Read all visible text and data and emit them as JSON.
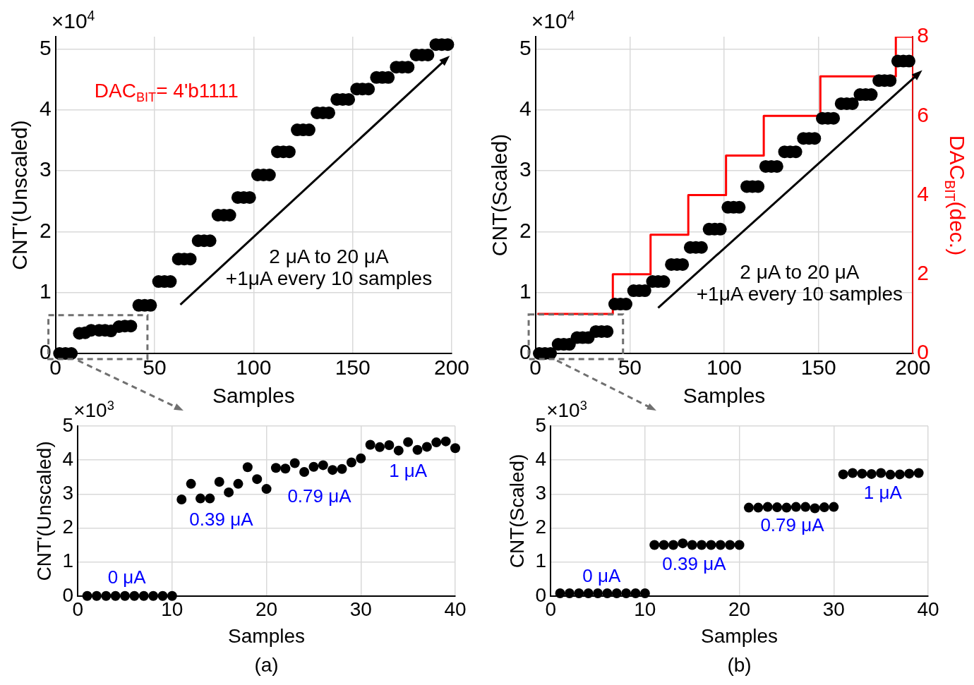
{
  "chart_data": [
    {
      "type": "scatter",
      "xlabel": "Samples",
      "ylabel": "CNT'(Unscaled)",
      "color": "#000000",
      "marker": "circle",
      "grid": true,
      "x": [
        2,
        5,
        8,
        12,
        15,
        18,
        22,
        25,
        28,
        32,
        35,
        38,
        42,
        45,
        48,
        52,
        55,
        58,
        62,
        65,
        68,
        72,
        75,
        78,
        82,
        85,
        88,
        92,
        95,
        98,
        102,
        105,
        108,
        112,
        115,
        118,
        122,
        125,
        128,
        132,
        135,
        138,
        142,
        145,
        148,
        152,
        155,
        158,
        162,
        165,
        168,
        172,
        175,
        178,
        182,
        185,
        188,
        192,
        195,
        198
      ],
      "values": [
        0,
        0,
        0,
        0.33,
        0.34,
        0.38,
        0.38,
        0.38,
        0.37,
        0.44,
        0.45,
        0.45,
        0.79,
        0.79,
        0.79,
        1.18,
        1.18,
        1.18,
        1.55,
        1.55,
        1.55,
        1.85,
        1.85,
        1.85,
        2.27,
        2.27,
        2.27,
        2.56,
        2.56,
        2.56,
        2.93,
        2.93,
        2.93,
        3.31,
        3.31,
        3.31,
        3.67,
        3.67,
        3.67,
        3.95,
        3.95,
        3.95,
        4.17,
        4.17,
        4.17,
        4.34,
        4.34,
        4.34,
        4.53,
        4.53,
        4.53,
        4.7,
        4.7,
        4.7,
        4.9,
        4.9,
        4.9,
        5.07,
        5.07,
        5.07
      ],
      "xlim": [
        0,
        200
      ],
      "xticks": [
        0,
        50,
        100,
        150,
        200
      ],
      "ylim": [
        0,
        5.2
      ],
      "yticks": [
        0,
        1,
        2,
        3,
        4,
        5
      ],
      "annotations": [
        "×10$^{4}$",
        "DAC$_{BIT}$= 4'b1111",
        "2 μA to 20 μA\n+1μA every 10 samples"
      ]
    },
    {
      "type": "scatter",
      "xlabel": "Samples",
      "ylabel": "CNT(Scaled)",
      "y2label": "DAC$_{BIT}$(dec.)",
      "grid": true,
      "series": [
        {
          "type": "scatter",
          "color": "#000000",
          "marker": "circle",
          "x": [
            2,
            5,
            8,
            12,
            15,
            18,
            22,
            25,
            28,
            32,
            35,
            38,
            42,
            45,
            48,
            52,
            55,
            58,
            62,
            65,
            68,
            72,
            75,
            78,
            82,
            85,
            88,
            92,
            95,
            98,
            102,
            105,
            108,
            112,
            115,
            118,
            122,
            125,
            128,
            132,
            135,
            138,
            142,
            145,
            148,
            152,
            155,
            158,
            162,
            165,
            168,
            172,
            175,
            178,
            182,
            185,
            188,
            192,
            195,
            198
          ],
          "values": [
            0,
            0,
            0,
            0.15,
            0.15,
            0.15,
            0.26,
            0.26,
            0.26,
            0.36,
            0.36,
            0.36,
            0.81,
            0.81,
            0.81,
            1.03,
            1.03,
            1.03,
            1.18,
            1.18,
            1.18,
            1.46,
            1.46,
            1.46,
            1.74,
            1.74,
            1.74,
            2.04,
            2.04,
            2.04,
            2.4,
            2.4,
            2.4,
            2.74,
            2.74,
            2.74,
            3.07,
            3.07,
            3.07,
            3.31,
            3.31,
            3.31,
            3.53,
            3.53,
            3.53,
            3.86,
            3.86,
            3.86,
            4.1,
            4.1,
            4.1,
            4.25,
            4.25,
            4.25,
            4.48,
            4.48,
            4.48,
            4.8,
            4.8,
            4.8
          ]
        },
        {
          "type": "step",
          "axis": "y2",
          "color": "#ff0000",
          "x": [
            1,
            41,
            61,
            81,
            101,
            121,
            151,
            191,
            200
          ],
          "values": [
            1,
            2,
            3,
            4,
            5,
            6,
            7,
            8,
            8
          ]
        }
      ],
      "xlim": [
        0,
        200
      ],
      "xticks": [
        0,
        50,
        100,
        150,
        200
      ],
      "ylim": [
        0,
        5.2
      ],
      "yticks": [
        0,
        1,
        2,
        3,
        4,
        5
      ],
      "y2lim": [
        0,
        8
      ],
      "y2ticks": [
        0,
        2,
        4,
        6,
        8
      ],
      "annotations": [
        "×10$^{4}$",
        "2 μA to 20 μA\n+1μA every 10 samples"
      ]
    },
    {
      "type": "scatter",
      "xlabel": "Samples",
      "ylabel": "CNT'(Unscaled)",
      "color": "#000000",
      "marker": "circle",
      "grid": true,
      "x": [
        1,
        2,
        3,
        4,
        5,
        6,
        7,
        8,
        9,
        10,
        11,
        12,
        13,
        14,
        15,
        16,
        17,
        18,
        19,
        20,
        21,
        22,
        23,
        24,
        25,
        26,
        27,
        28,
        29,
        30,
        31,
        32,
        33,
        34,
        35,
        36,
        37,
        38,
        39,
        40
      ],
      "values": [
        0,
        0,
        0,
        0,
        0,
        0,
        0,
        0,
        0,
        0,
        2.84,
        3.3,
        2.87,
        2.87,
        3.36,
        3.05,
        3.3,
        3.79,
        3.44,
        3.15,
        3.77,
        3.75,
        3.91,
        3.65,
        3.8,
        3.85,
        3.71,
        3.74,
        3.93,
        4.05,
        4.45,
        4.38,
        4.44,
        4.28,
        4.53,
        4.3,
        4.39,
        4.52,
        4.55,
        4.35
      ],
      "xlim": [
        0,
        40
      ],
      "xticks": [
        0,
        10,
        20,
        30,
        40
      ],
      "ylim": [
        0,
        5
      ],
      "yticks": [
        0,
        1,
        2,
        3,
        4,
        5
      ],
      "annotations": [
        "×10$^{3}$",
        "0 μA",
        "0.39 μA",
        "0.79 μA",
        "1 μA",
        "(a)"
      ]
    },
    {
      "type": "scatter",
      "xlabel": "Samples",
      "ylabel": "CNT(Scaled)",
      "color": "#000000",
      "marker": "circle",
      "grid": true,
      "x": [
        1,
        2,
        3,
        4,
        5,
        6,
        7,
        8,
        9,
        10,
        11,
        12,
        13,
        14,
        15,
        16,
        17,
        18,
        19,
        20,
        21,
        22,
        23,
        24,
        25,
        26,
        27,
        28,
        29,
        30,
        31,
        32,
        33,
        34,
        35,
        36,
        37,
        38,
        39
      ],
      "values": [
        0.08,
        0.08,
        0.08,
        0.08,
        0.08,
        0.08,
        0.08,
        0.08,
        0.08,
        0.08,
        1.5,
        1.5,
        1.5,
        1.55,
        1.5,
        1.5,
        1.5,
        1.5,
        1.5,
        1.5,
        2.6,
        2.6,
        2.62,
        2.61,
        2.6,
        2.62,
        2.62,
        2.58,
        2.61,
        2.62,
        3.58,
        3.62,
        3.6,
        3.59,
        3.62,
        3.57,
        3.58,
        3.6,
        3.62
      ],
      "xlim": [
        0,
        40
      ],
      "xticks": [
        0,
        10,
        20,
        30,
        40
      ],
      "ylim": [
        0,
        5
      ],
      "yticks": [
        0,
        1,
        2,
        3,
        4,
        5
      ],
      "annotations": [
        "×10$^{3}$",
        "0 μA",
        "0.39 μA",
        "0.79 μA",
        "1 μA",
        "(b)"
      ]
    }
  ]
}
